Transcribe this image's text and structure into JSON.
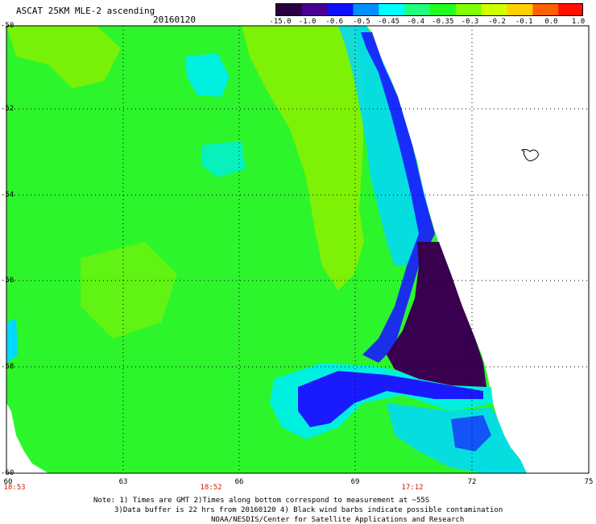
{
  "header": {
    "title": "ASCAT 25KM MLE-2 ascending",
    "date": "20160120"
  },
  "colorbar": {
    "labels": [
      "-15.0",
      "-1.0",
      "-0.6",
      "-0.5",
      "-0.45",
      "-0.4",
      "-0.35",
      "-0.3",
      "-0.2",
      "-0.1",
      "0.0",
      "1.0"
    ],
    "colors": [
      "#2a0040",
      "#4a0090",
      "#1010ff",
      "#0090ff",
      "#00ffff",
      "#20ff80",
      "#20ff20",
      "#80ff00",
      "#d0ff00",
      "#ffd000",
      "#ff6000",
      "#ff1000"
    ]
  },
  "map": {
    "lat_labels": [
      "-50",
      "-52",
      "-54",
      "-56",
      "-58",
      "-60"
    ],
    "lon_labels": [
      "60",
      "63",
      "66",
      "69",
      "72",
      "75"
    ],
    "time_labels": [
      "18:53",
      "18:52",
      "17:12"
    ],
    "colors": {
      "background_green": "#2cf52c",
      "yellow_green": "#8cf000",
      "cyan": "#00f0e0",
      "aqua": "#00d8ff",
      "blue": "#1a1aff",
      "dark_purple": "#3a0050",
      "grid": "#000000"
    }
  },
  "footer": {
    "line1": "Note: 1) Times are GMT 2)Times along bottom correspond to measurement at ~55S",
    "line2": "3)Data buffer is 22 hrs from 20160120 4) Black wind barbs indicate possible contamination",
    "line3": "NOAA/NESDIS/Center for Satellite Applications and Research"
  }
}
